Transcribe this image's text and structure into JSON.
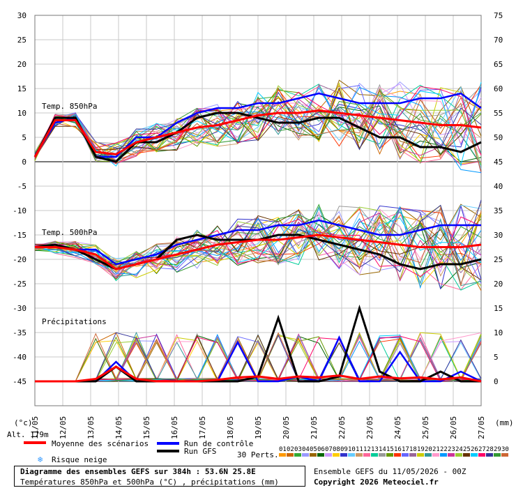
{
  "chart_data": {
    "type": "line",
    "x_tick_labels": [
      "11/05",
      "12/05",
      "13/05",
      "14/05",
      "15/05",
      "16/05",
      "17/05",
      "18/05",
      "19/05",
      "20/05",
      "21/05",
      "22/05",
      "23/05",
      "24/05",
      "25/05",
      "26/05",
      "27/05"
    ],
    "left_axis_ticks": [
      30,
      25,
      20,
      15,
      10,
      5,
      0,
      -5,
      -10,
      -15,
      -20,
      -25,
      -30,
      -35,
      -40,
      -45
    ],
    "right_axis_ticks": [
      75,
      70,
      65,
      60,
      55,
      50,
      45,
      40,
      35,
      30,
      25,
      20,
      15,
      10,
      5,
      0
    ],
    "left_unit_label": "(°c)",
    "right_unit_label": "(mm)",
    "panel_labels": {
      "t850": "Temp. 850hPa",
      "t500": "Temp. 500hPa",
      "precip": "Précipitations"
    },
    "altitude_label": "Alt. 179m",
    "series": [
      {
        "name": "Moyenne des scénarios",
        "color": "#ff0000",
        "t850": [
          1,
          8.5,
          8.5,
          2,
          1.5,
          4,
          5,
          6,
          7,
          7.5,
          8.5,
          9.5,
          10,
          10,
          10.5,
          10,
          9.5,
          9,
          8.5,
          8,
          7.5,
          7.5,
          7
        ],
        "t500": [
          -17.5,
          -17.5,
          -18,
          -19,
          -22,
          -21,
          -20,
          -19,
          -18,
          -17,
          -16.5,
          -16,
          -16,
          -15.5,
          -15,
          -15.5,
          -16,
          -16.5,
          -17,
          -17.5,
          -17.5,
          -17.5,
          -17
        ],
        "precip": [
          0,
          0,
          0,
          0.5,
          3,
          0.5,
          0,
          0,
          0,
          0.3,
          0.8,
          1,
          0.5,
          1,
          0.8,
          1.2,
          0.5,
          1,
          0.6,
          0.8,
          0.4,
          0.8,
          0
        ]
      },
      {
        "name": "Run de contrôle",
        "color": "#0000ff",
        "t850": [
          1,
          8,
          9,
          1,
          1,
          5,
          5,
          8,
          10,
          11,
          11,
          12,
          12,
          13,
          14,
          13,
          12,
          12,
          12,
          13,
          13,
          14,
          11
        ],
        "t500": [
          -17.5,
          -17,
          -18,
          -18,
          -21,
          -20,
          -19,
          -17,
          -16,
          -15,
          -14,
          -14,
          -13,
          -13,
          -12,
          -13,
          -14,
          -15,
          -15,
          -14,
          -13,
          -13,
          -13
        ],
        "precip": [
          0,
          0,
          0,
          0,
          4,
          0,
          0,
          0,
          0,
          0,
          8,
          0,
          0,
          1,
          0,
          9,
          0,
          0,
          6,
          0,
          0,
          2,
          0
        ]
      },
      {
        "name": "Run GFS",
        "color": "#000000",
        "t850": [
          1,
          9,
          9,
          1,
          0,
          4,
          4,
          6,
          9,
          10,
          10,
          9,
          8,
          8,
          9,
          9,
          7,
          5,
          5,
          3,
          3,
          2,
          4
        ],
        "t500": [
          -17.5,
          -17,
          -18,
          -20,
          -22,
          -21,
          -20,
          -16,
          -15,
          -16,
          -16,
          -16,
          -15,
          -15,
          -16,
          -17,
          -18,
          -19,
          -21,
          -22,
          -21,
          -21,
          -20
        ],
        "precip": [
          0,
          0,
          0,
          0,
          3,
          0,
          0,
          0,
          0,
          0,
          0,
          1,
          13,
          0,
          0,
          1,
          15,
          2,
          0,
          0,
          2,
          0,
          0
        ]
      }
    ],
    "member_colors": [
      "#ff9900",
      "#cc6600",
      "#33aa33",
      "#9999ff",
      "#996600",
      "#006600",
      "#cc99ff",
      "#ffcc00",
      "#3333cc",
      "#66ccff",
      "#cc9966",
      "#ff6699",
      "#00cc99",
      "#999999",
      "#669900",
      "#ff3300",
      "#6666ff",
      "#996699",
      "#cccc00",
      "#339999",
      "#ff99cc",
      "#0099ff",
      "#cc3399",
      "#99cc33",
      "#663300",
      "#00ccff",
      "#ff0066",
      "#333399",
      "#339933",
      "#cc6633"
    ],
    "member_ids": [
      "01",
      "02",
      "03",
      "04",
      "05",
      "06",
      "07",
      "08",
      "09",
      "10",
      "11",
      "12",
      "13",
      "14",
      "15",
      "16",
      "17",
      "18",
      "19",
      "20",
      "21",
      "22",
      "23",
      "24",
      "25",
      "26",
      "27",
      "28",
      "29",
      "30"
    ],
    "perts_label": "30 Perts."
  },
  "legend": {
    "mean": "Moyenne des scénarios",
    "control": "Run de contrôle",
    "gfs": "Run GFS",
    "snow": "Risque neige",
    "snow_icon": "snowflake-icon"
  },
  "footer": {
    "title": "Diagramme des ensembles GEFS sur 384h : 53.6N 25.8E",
    "subtitle": "Températures 850hPa et 500hPa (°C) , précipitations (mm)",
    "run_info": "Ensemble GEFS du 11/05/2026 - 00Z",
    "copyright": "Copyright 2026 Meteociel.fr"
  }
}
